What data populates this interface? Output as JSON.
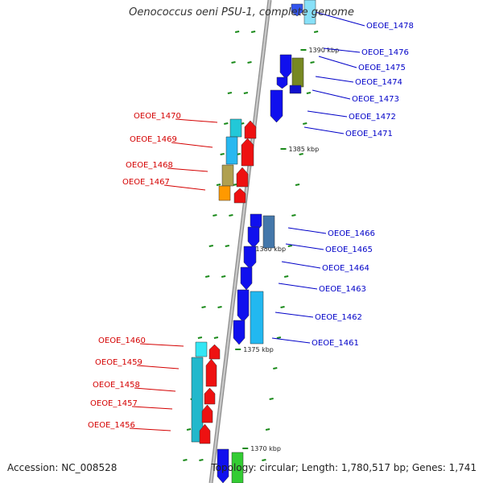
{
  "map": {
    "title": "Oenococcus oeni PSU-1, complete genome",
    "accession_text": "Accession: NC_008528",
    "summary_text": "Topology: circular; Length: 1,780,517 bp; Genes: 1,741"
  },
  "colors": {
    "backbone": "#a8a8a8",
    "tick": "#1a8a1a",
    "label_red": "#d40000",
    "label_blue": "#0000c8"
  },
  "kbp_labels": [
    "1390 kbp",
    "1385 kbp",
    "1380 kbp",
    "1375 kbp",
    "1370 kbp"
  ],
  "genes_reverse": [
    {
      "id": "OEOE_1470",
      "strand": "reverse"
    },
    {
      "id": "OEOE_1469",
      "strand": "reverse"
    },
    {
      "id": "OEOE_1468",
      "strand": "reverse"
    },
    {
      "id": "OEOE_1467",
      "strand": "reverse"
    },
    {
      "id": "OEOE_1460",
      "strand": "reverse"
    },
    {
      "id": "OEOE_1459",
      "strand": "reverse"
    },
    {
      "id": "OEOE_1458",
      "strand": "reverse"
    },
    {
      "id": "OEOE_1457",
      "strand": "reverse"
    },
    {
      "id": "OEOE_1456",
      "strand": "reverse"
    }
  ],
  "genes_forward": [
    {
      "id": "OEOE_1478",
      "strand": "forward"
    },
    {
      "id": "OEOE_1476",
      "strand": "forward"
    },
    {
      "id": "OEOE_1475",
      "strand": "forward"
    },
    {
      "id": "OEOE_1474",
      "strand": "forward"
    },
    {
      "id": "OEOE_1473",
      "strand": "forward"
    },
    {
      "id": "OEOE_1472",
      "strand": "forward"
    },
    {
      "id": "OEOE_1471",
      "strand": "forward"
    },
    {
      "id": "OEOE_1466",
      "strand": "forward"
    },
    {
      "id": "OEOE_1465",
      "strand": "forward"
    },
    {
      "id": "OEOE_1464",
      "strand": "forward"
    },
    {
      "id": "OEOE_1463",
      "strand": "forward"
    },
    {
      "id": "OEOE_1462",
      "strand": "forward"
    },
    {
      "id": "OEOE_1461",
      "strand": "forward"
    }
  ]
}
